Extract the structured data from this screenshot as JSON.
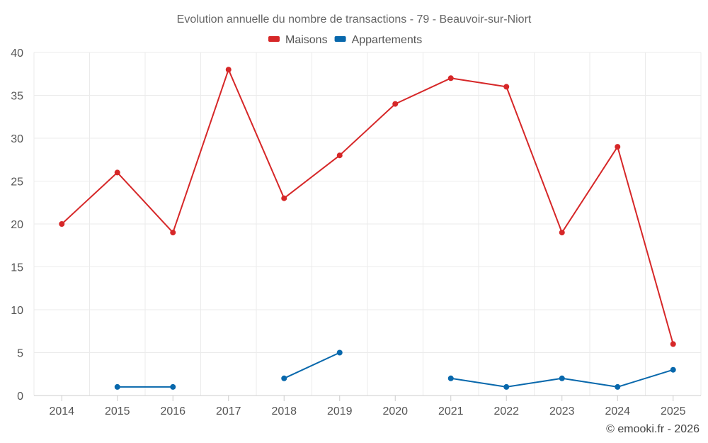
{
  "chart_data": {
    "type": "line",
    "title": "Evolution annuelle du nombre de transactions - 79 - Beauvoir-sur-Niort",
    "categories": [
      "2014",
      "2015",
      "2016",
      "2017",
      "2018",
      "2019",
      "2020",
      "2021",
      "2022",
      "2023",
      "2024",
      "2025"
    ],
    "ylim": [
      0,
      40
    ],
    "yticks": [
      0,
      5,
      10,
      15,
      20,
      25,
      30,
      35,
      40
    ],
    "grid": true,
    "legend_position": "top-center",
    "series": [
      {
        "name": "Maisons",
        "color": "#d62728",
        "values": [
          20,
          26,
          19,
          38,
          23,
          28,
          34,
          37,
          36,
          19,
          29,
          6
        ]
      },
      {
        "name": "Appartements",
        "color": "#0868ac",
        "values": [
          null,
          1,
          1,
          null,
          2,
          5,
          null,
          2,
          1,
          2,
          1,
          3
        ]
      }
    ],
    "credit": "© emooki.fr - 2026"
  }
}
